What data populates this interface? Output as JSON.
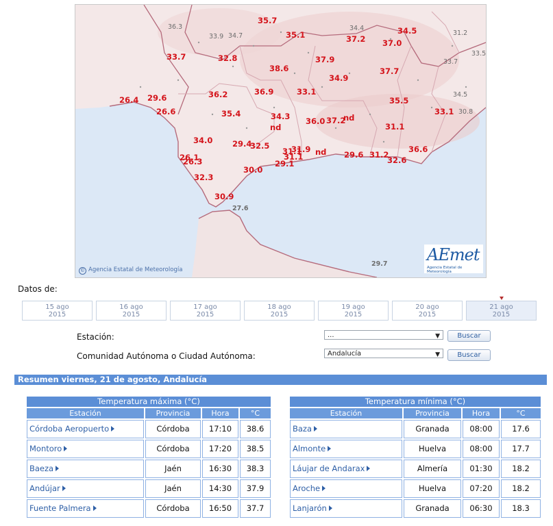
{
  "map": {
    "credit": "Agencia Estatal de Meteorología",
    "logo_main": "AEmet",
    "logo_sub": "Agencia Estatal de Meteorología",
    "labels_red": [
      "35.7",
      "35.1",
      "37.2",
      "34.5",
      "37.0",
      "33.7",
      "32.8",
      "38.6",
      "37.9",
      "34.9",
      "37.7",
      "26.4",
      "29.6",
      "36.2",
      "36.9",
      "33.1",
      "35.5",
      "33.1",
      "26.6",
      "35.4",
      "34.3",
      "nd",
      "36.0",
      "37.2",
      "nd",
      "31.1",
      "34.0",
      "29.4",
      "32.5",
      "31.1",
      "31.9",
      "nd",
      "29.6",
      "31.2",
      "36.6",
      "26.1",
      "26.3",
      "31.1",
      "29.1",
      "32.6",
      "30.0",
      "32.3",
      "30.9"
    ],
    "labels_grey": [
      "36.3",
      "33.9",
      "34.7",
      "34.4",
      "31.2",
      "33.5",
      "33.7",
      "34.5",
      "30.8",
      "27.6",
      "29.7"
    ]
  },
  "datos_label": "Datos de:",
  "dates": [
    {
      "day": "15 ago",
      "year": "2015"
    },
    {
      "day": "16 ago",
      "year": "2015"
    },
    {
      "day": "17 ago",
      "year": "2015"
    },
    {
      "day": "18 ago",
      "year": "2015"
    },
    {
      "day": "19 ago",
      "year": "2015"
    },
    {
      "day": "20 ago",
      "year": "2015"
    },
    {
      "day": "21 ago",
      "year": "2015"
    }
  ],
  "filters": {
    "estacion_label": "Estación:",
    "estacion_value": "...",
    "comunidad_label": "Comunidad Autónoma o Ciudad Autónoma:",
    "comunidad_value": "Andalucía",
    "buscar": "Buscar"
  },
  "summary_title": "Resumen viernes, 21 de agosto, Andalucía",
  "tmax": {
    "caption": "Temperatura máxima (°C)",
    "headers": [
      "Estación",
      "Provincia",
      "Hora",
      "°C"
    ],
    "rows": [
      [
        "Córdoba Aeropuerto",
        "Córdoba",
        "17:10",
        "38.6"
      ],
      [
        "Montoro",
        "Córdoba",
        "17:20",
        "38.5"
      ],
      [
        "Baeza",
        "Jaén",
        "16:30",
        "38.3"
      ],
      [
        "Andújar",
        "Jaén",
        "14:30",
        "37.9"
      ],
      [
        "Fuente Palmera",
        "Córdoba",
        "16:50",
        "37.7"
      ]
    ]
  },
  "tmin": {
    "caption": "Temperatura mínima (°C)",
    "headers": [
      "Estación",
      "Provincia",
      "Hora",
      "°C"
    ],
    "rows": [
      [
        "Baza",
        "Granada",
        "08:00",
        "17.6"
      ],
      [
        "Almonte",
        "Huelva",
        "08:00",
        "17.7"
      ],
      [
        "Láujar de Andarax",
        "Almería",
        "01:30",
        "18.2"
      ],
      [
        "Aroche",
        "Huelva",
        "07:20",
        "18.2"
      ],
      [
        "Lanjarón",
        "Granada",
        "06:30",
        "18.3"
      ]
    ]
  },
  "colors": {
    "header_blue": "#5b8ed6",
    "link_blue": "#2e5fa6",
    "map_value_red": "#d4141b",
    "sea": "#dce8f6",
    "land": "#f3eceb"
  }
}
